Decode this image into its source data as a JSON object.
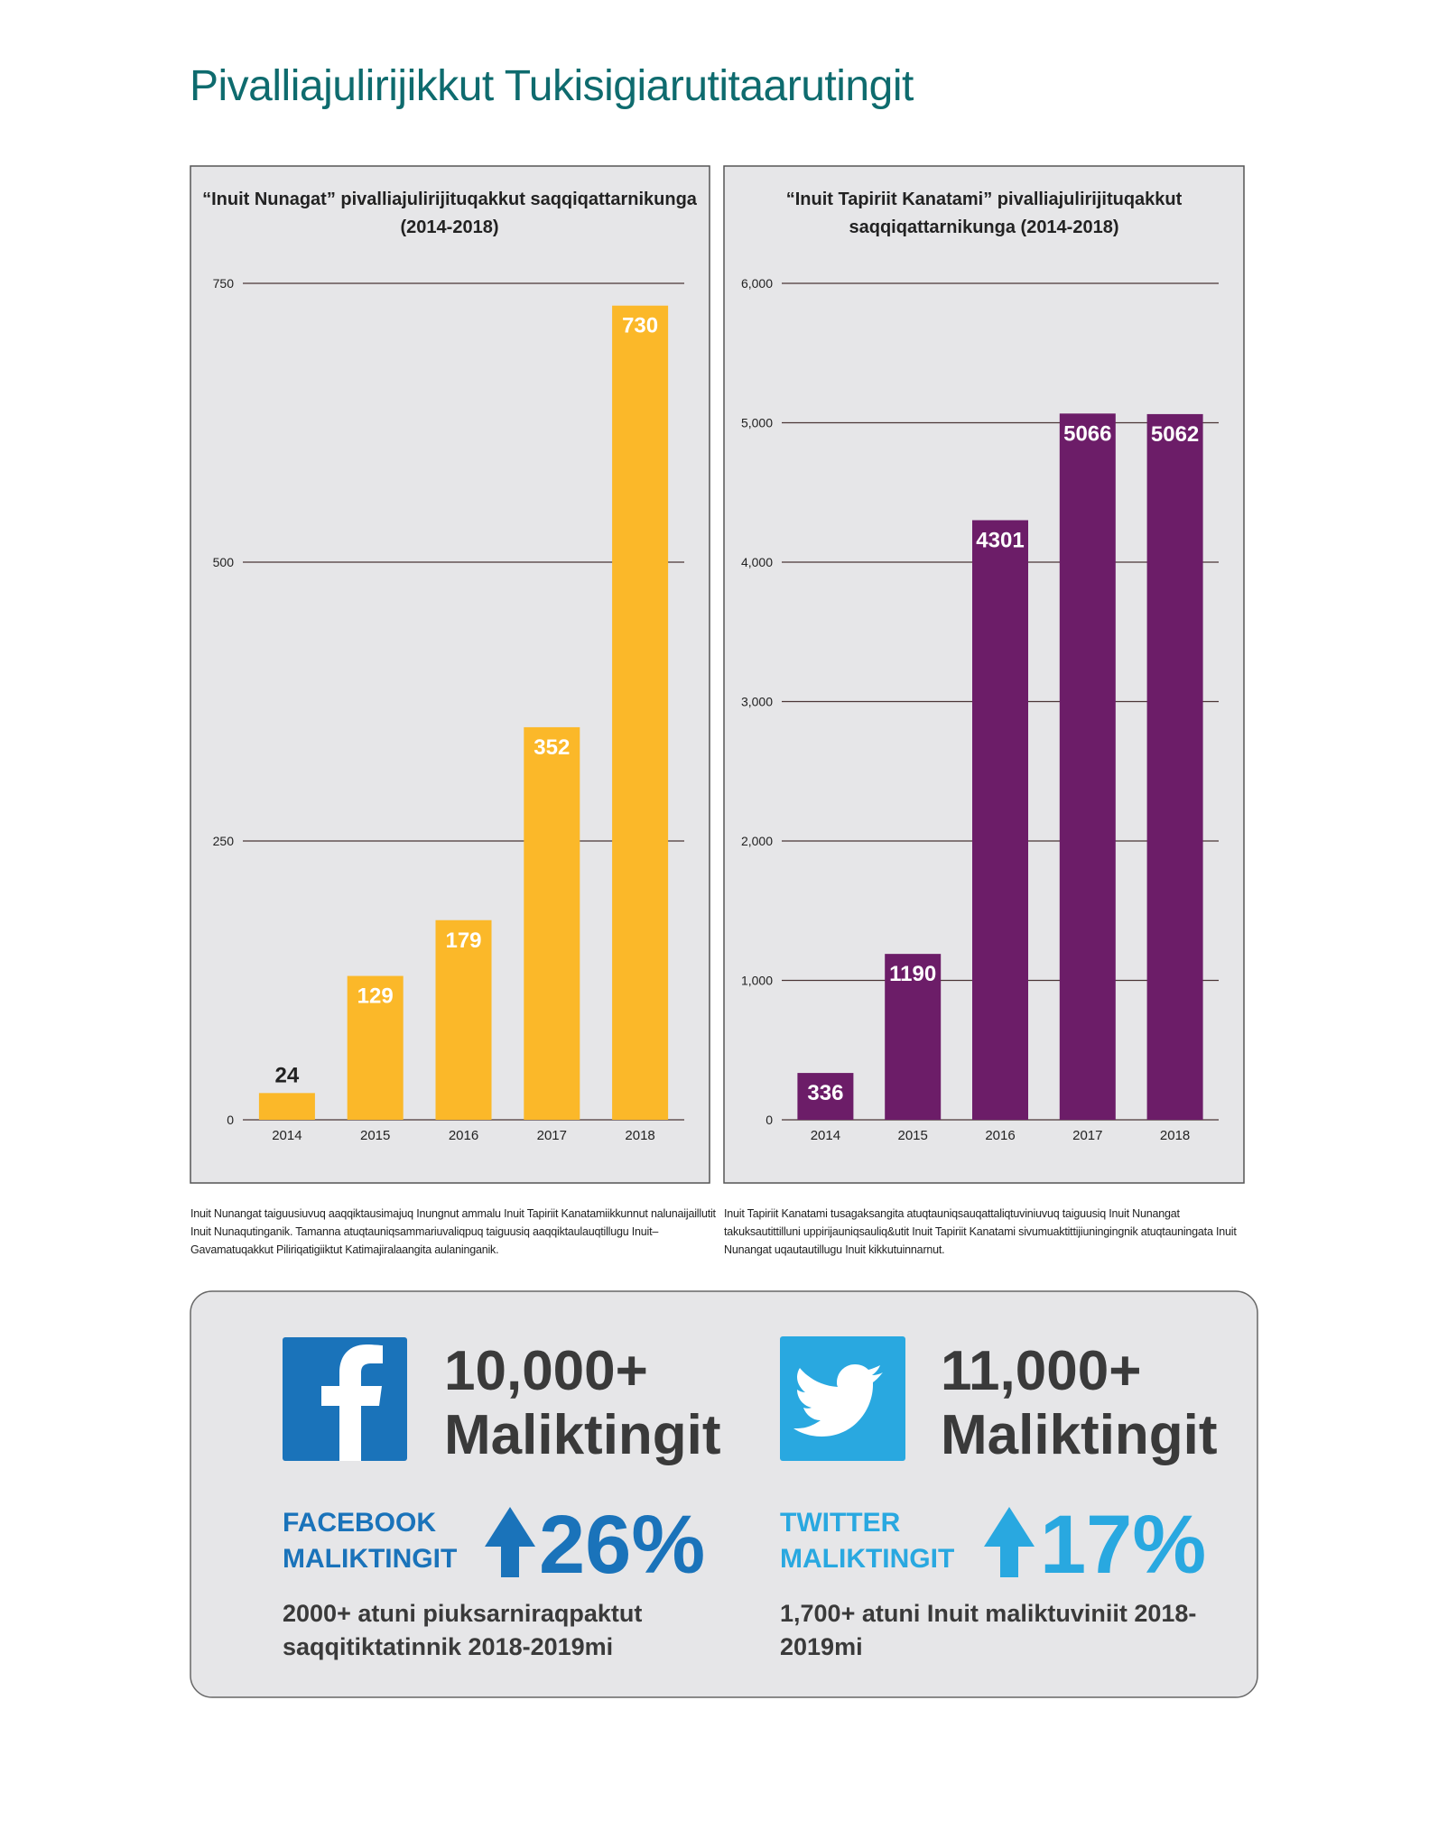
{
  "title": "Pivalliajulirijikkut Tukisigiarutitaarutingit",
  "chart_data": [
    {
      "type": "bar",
      "title": "“Inuit Nunagat” pivalliajulirijituqakkut saqqiqattarnikunga (2014-2018)",
      "categories": [
        "2014",
        "2015",
        "2016",
        "2017",
        "2018"
      ],
      "values": [
        24,
        129,
        179,
        352,
        730
      ],
      "color": "#fbb829",
      "ylim": [
        0,
        750
      ],
      "yticks": [
        0,
        250,
        500,
        750
      ],
      "grid": true,
      "note": "Inuit Nunangat taiguusiuvuq aaqqiktausimajuq Inungnut ammalu Inuit Tapiriit Kanatamiikkunnut nalunaijaillutit Inuit Nunaqutinganik. Tamanna atuqtauniqsammariuvaliqpuq taiguusiq aaqqiktaulauqtillugu Inuit–Gavamatuqakkut Piliriqatigiiktut Katimajiralaangita aulaninganik."
    },
    {
      "type": "bar",
      "title": "“Inuit Tapiriit Kanatami” pivalliajulirijituqakkut saqqiqattarnikunga (2014-2018)",
      "categories": [
        "2014",
        "2015",
        "2016",
        "2017",
        "2018"
      ],
      "values": [
        336,
        1190,
        4301,
        5066,
        5062
      ],
      "color": "#6c1d68",
      "ylim": [
        0,
        6000
      ],
      "yticks": [
        0,
        {
          "value": 1000,
          "label": "1,000"
        },
        {
          "value": 2000,
          "label": "2,000"
        },
        {
          "value": 3000,
          "label": "3,000"
        },
        {
          "value": 4000,
          "label": "4,000"
        },
        {
          "value": 5000,
          "label": "5,000"
        },
        {
          "value": 6000,
          "label": "6,000"
        }
      ],
      "grid": true,
      "note": "Inuit Tapiriit Kanatami tusagaksangita atuqtauniqsauqattaliqtuviniuvuq taiguusiq Inuit Nunangat takuksautittilluni uppirijauniqsauliq&utit Inuit Tapiriit Kanatami sivumuaktittijiuningingnik atuqtauningata Inuit Nunangat uqautautillugu Inuit kikkutuinnarnut."
    }
  ],
  "social": [
    {
      "count": "10,000+",
      "unit": "Maliktingit",
      "label": "FACEBOOK MALIKTINGIT",
      "growth": "26%",
      "detail": "2000+ atuni piuksarniraqpaktut saqqitiktatinnik 2018-2019mi"
    },
    {
      "count": "11,000+",
      "unit": "Maliktingit",
      "label": "TWITTER MALIKTINGIT",
      "growth": "17%",
      "detail": "1,700+ atuni Inuit maliktuviniit 2018-2019mi"
    }
  ]
}
